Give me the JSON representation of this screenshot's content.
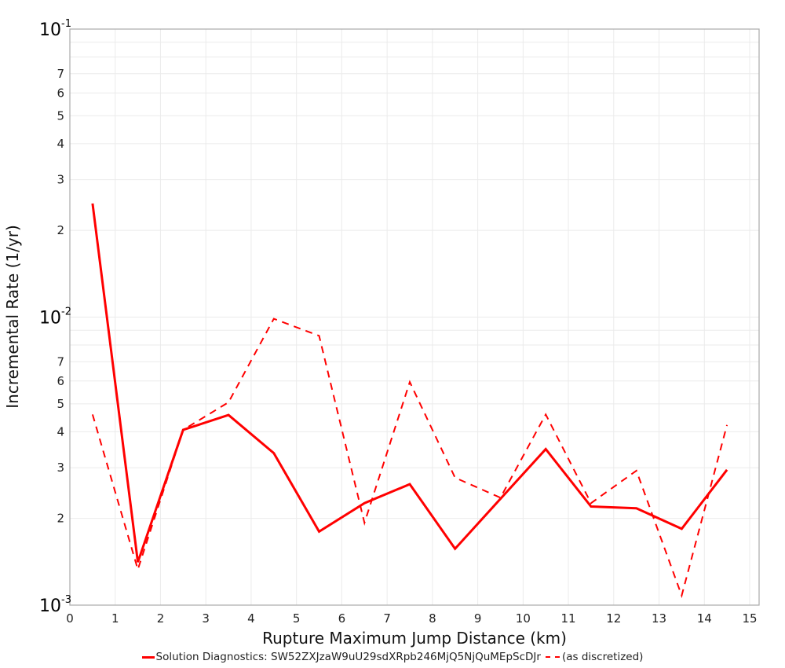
{
  "chart_data": {
    "type": "line",
    "title": "",
    "xlabel": "Rupture Maximum Jump Distance (km)",
    "ylabel": "Incremental Rate (1/yr)",
    "xlim": [
      0,
      15
    ],
    "ylim": [
      0.001,
      0.1
    ],
    "yscale": "log",
    "grid": true,
    "legend_position": "bottom",
    "x_ticks": [
      "0",
      "1",
      "2",
      "3",
      "4",
      "5",
      "6",
      "7",
      "8",
      "9",
      "10",
      "11",
      "12",
      "13",
      "14",
      "15"
    ],
    "y_decade_labels": [
      {
        "base": "10",
        "exp": "-1",
        "value": 0.1
      },
      {
        "base": "10",
        "exp": "-2",
        "value": 0.01
      },
      {
        "base": "10",
        "exp": "-3",
        "value": 0.001
      }
    ],
    "y_minor_labels": [
      "2",
      "3",
      "4",
      "5",
      "6",
      "7"
    ],
    "x": [
      0.5,
      1.5,
      2.5,
      3.5,
      4.5,
      5.5,
      6.5,
      7.5,
      8.5,
      9.5,
      10.5,
      11.5,
      12.5,
      13.5,
      14.5
    ],
    "series": [
      {
        "name": "Solution Diagnostics: SW52ZXJzaW9uU29sdXRpb246MjQ5NjQuMEpScDJr",
        "style": "solid",
        "color": "#ff0000",
        "values": [
          0.0248,
          0.00141,
          0.00406,
          0.00457,
          0.00337,
          0.0018,
          0.00226,
          0.00263,
          0.00157,
          0.00234,
          0.00348,
          0.0022,
          0.00217,
          0.00184,
          0.00295
        ]
      },
      {
        "name": "(as discretized)",
        "style": "dashed",
        "color": "#ff0000",
        "values": [
          0.00459,
          0.00133,
          0.00406,
          0.00506,
          0.00987,
          0.00861,
          0.00193,
          0.00595,
          0.00277,
          0.00236,
          0.00459,
          0.00226,
          0.00293,
          0.00108,
          0.00422
        ]
      }
    ]
  },
  "legend": {
    "solid_label": "Solution Diagnostics: SW52ZXJzaW9uU29sdXRpb246MjQ5NjQuMEpScDJr",
    "dashed_label": "(as discretized)"
  }
}
